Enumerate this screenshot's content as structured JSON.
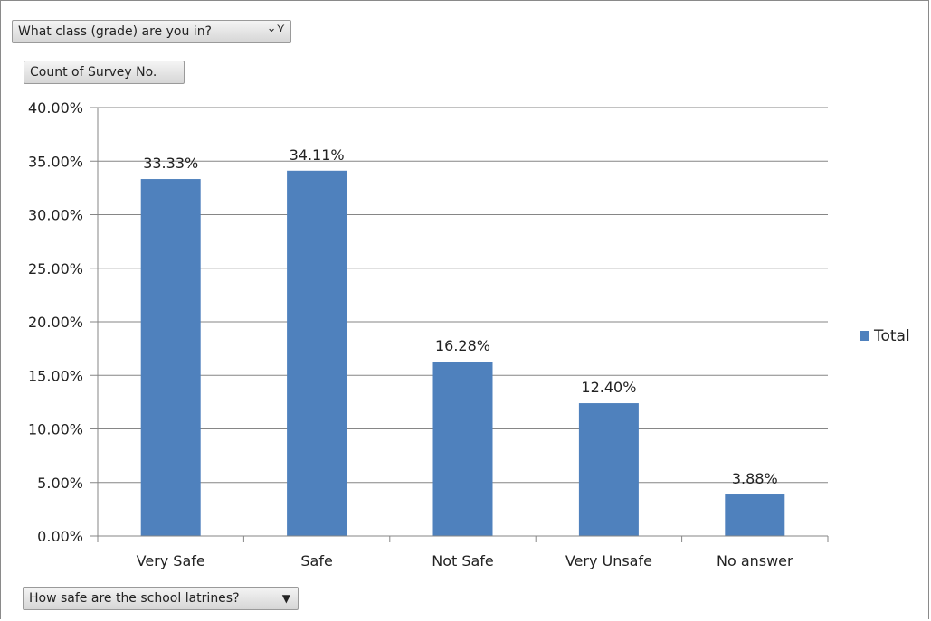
{
  "filter_field": {
    "label": "What class (grade) are you in?",
    "icon": "filter-dropdown-icon"
  },
  "value_field": {
    "label": "Count of Survey No."
  },
  "axis_field": {
    "label": "How safe are the school latrines?",
    "icon": "dropdown-arrow-icon"
  },
  "chart_data": {
    "type": "bar",
    "categories": [
      "Very Safe",
      "Safe",
      "Not Safe",
      "Very Unsafe",
      "No answer"
    ],
    "series": [
      {
        "name": "Total",
        "values": [
          33.33,
          34.11,
          16.28,
          12.4,
          3.88
        ],
        "color": "#4f81bd"
      }
    ],
    "data_labels": [
      "33.33%",
      "34.11%",
      "16.28%",
      "12.40%",
      "3.88%"
    ],
    "ylim": [
      0,
      40
    ],
    "yticks": [
      "0.00%",
      "5.00%",
      "10.00%",
      "15.00%",
      "20.00%",
      "25.00%",
      "30.00%",
      "35.00%",
      "40.00%"
    ],
    "grid": true,
    "legend_position": "right",
    "legend": [
      "Total"
    ]
  }
}
